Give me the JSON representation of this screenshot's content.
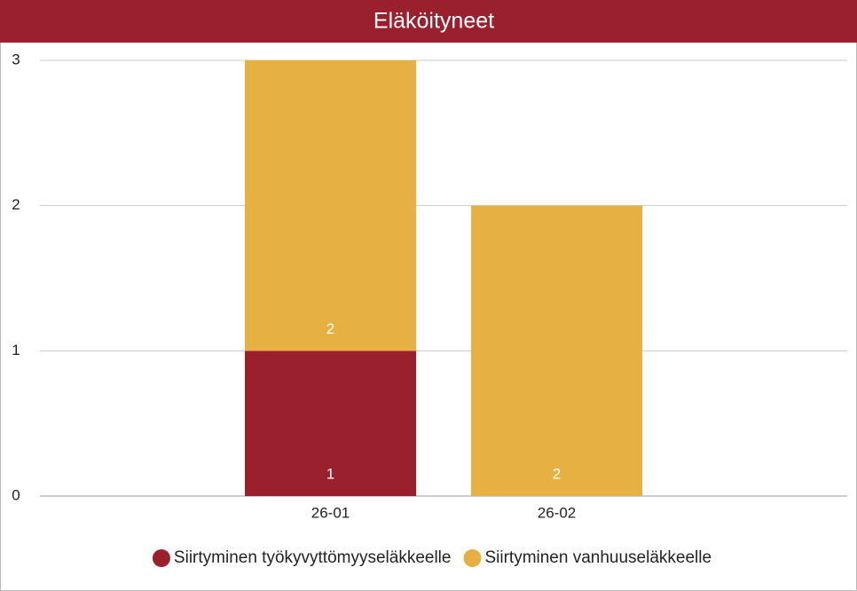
{
  "chart_data": {
    "type": "stacked_bar",
    "title": "Eläköityneet",
    "categories": [
      "26-01",
      "26-02"
    ],
    "series": [
      {
        "name": "Siirtyminen työkyvyttömyyseläkkeelle",
        "color": "#9b202d",
        "values": [
          1,
          null
        ]
      },
      {
        "name": "Siirtyminen vanhuuseläkkeelle",
        "color": "#e6b042",
        "values": [
          2,
          2
        ]
      }
    ],
    "ylim": [
      0,
      3
    ],
    "yticks": [
      0,
      1,
      2,
      3
    ],
    "grid": true,
    "legend": "bottom"
  }
}
